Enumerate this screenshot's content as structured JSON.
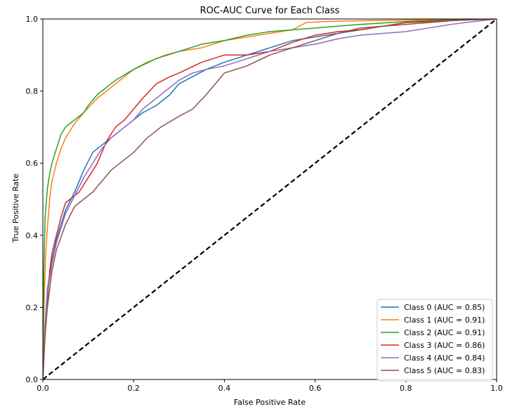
{
  "chart_data": {
    "type": "line",
    "title": "ROC-AUC Curve for Each Class",
    "xlabel": "False Positive Rate",
    "ylabel": "True Positive Rate",
    "xlim": [
      0,
      1
    ],
    "ylim": [
      0,
      1
    ],
    "xticks": [
      "0.0",
      "0.2",
      "0.4",
      "0.6",
      "0.8",
      "1.0"
    ],
    "yticks": [
      "0.0",
      "0.2",
      "0.4",
      "0.6",
      "0.8",
      "1.0"
    ],
    "grid": false,
    "legend_position": "lower-right",
    "diagonal": {
      "style": "dashed",
      "color": "#000000",
      "x": [
        0,
        1
      ],
      "y": [
        0,
        1
      ]
    },
    "series": [
      {
        "name": "Class 0 (AUC = 0.85)",
        "color": "#1f77b4",
        "x": [
          0,
          0.005,
          0.01,
          0.02,
          0.03,
          0.05,
          0.07,
          0.09,
          0.11,
          0.13,
          0.15,
          0.18,
          0.2,
          0.22,
          0.25,
          0.28,
          0.3,
          0.33,
          0.36,
          0.4,
          0.45,
          0.5,
          0.55,
          0.6,
          0.65,
          0.7,
          0.75,
          0.8,
          0.85,
          0.9,
          0.95,
          1.0
        ],
        "y": [
          0,
          0.15,
          0.25,
          0.33,
          0.39,
          0.47,
          0.52,
          0.58,
          0.63,
          0.65,
          0.67,
          0.7,
          0.72,
          0.74,
          0.76,
          0.79,
          0.82,
          0.84,
          0.86,
          0.88,
          0.9,
          0.92,
          0.94,
          0.95,
          0.96,
          0.97,
          0.98,
          0.99,
          0.993,
          0.996,
          0.998,
          1.0
        ]
      },
      {
        "name": "Class 1 (AUC = 0.91)",
        "color": "#ff7f0e",
        "x": [
          0,
          0.003,
          0.006,
          0.01,
          0.015,
          0.02,
          0.03,
          0.04,
          0.05,
          0.07,
          0.09,
          0.12,
          0.15,
          0.18,
          0.2,
          0.23,
          0.27,
          0.3,
          0.35,
          0.4,
          0.45,
          0.5,
          0.55,
          0.58,
          0.62,
          0.7,
          0.8,
          0.9,
          1.0
        ],
        "y": [
          0,
          0.22,
          0.34,
          0.42,
          0.5,
          0.55,
          0.6,
          0.64,
          0.67,
          0.71,
          0.74,
          0.78,
          0.81,
          0.84,
          0.86,
          0.88,
          0.9,
          0.91,
          0.92,
          0.94,
          0.95,
          0.96,
          0.97,
          0.99,
          0.993,
          0.995,
          0.997,
          0.999,
          1.0
        ]
      },
      {
        "name": "Class 2 (AUC = 0.91)",
        "color": "#2ca02c",
        "x": [
          0,
          0.002,
          0.005,
          0.01,
          0.015,
          0.02,
          0.03,
          0.04,
          0.05,
          0.07,
          0.09,
          0.1,
          0.12,
          0.14,
          0.16,
          0.2,
          0.25,
          0.3,
          0.35,
          0.4,
          0.45,
          0.5,
          0.55,
          0.6,
          0.7,
          0.8,
          0.9,
          1.0
        ],
        "y": [
          0,
          0.3,
          0.45,
          0.53,
          0.57,
          0.6,
          0.64,
          0.68,
          0.7,
          0.72,
          0.74,
          0.76,
          0.79,
          0.81,
          0.83,
          0.86,
          0.89,
          0.91,
          0.93,
          0.94,
          0.955,
          0.965,
          0.97,
          0.975,
          0.985,
          0.993,
          0.998,
          1.0
        ]
      },
      {
        "name": "Class 3 (AUC = 0.86)",
        "color": "#d62728",
        "x": [
          0,
          0.005,
          0.01,
          0.015,
          0.02,
          0.03,
          0.04,
          0.05,
          0.06,
          0.07,
          0.08,
          0.1,
          0.12,
          0.14,
          0.16,
          0.18,
          0.2,
          0.22,
          0.25,
          0.28,
          0.3,
          0.35,
          0.4,
          0.45,
          0.5,
          0.55,
          0.6,
          0.65,
          0.7,
          0.75,
          0.8,
          0.85,
          0.9,
          1.0
        ],
        "y": [
          0,
          0.13,
          0.22,
          0.3,
          0.35,
          0.4,
          0.45,
          0.49,
          0.5,
          0.51,
          0.52,
          0.56,
          0.6,
          0.66,
          0.7,
          0.72,
          0.75,
          0.78,
          0.82,
          0.84,
          0.85,
          0.88,
          0.9,
          0.9,
          0.91,
          0.935,
          0.955,
          0.965,
          0.97,
          0.98,
          0.99,
          0.993,
          0.996,
          1.0
        ]
      },
      {
        "name": "Class 4 (AUC = 0.84)",
        "color": "#9467bd",
        "x": [
          0,
          0.005,
          0.01,
          0.02,
          0.03,
          0.05,
          0.07,
          0.09,
          0.11,
          0.13,
          0.15,
          0.18,
          0.2,
          0.22,
          0.25,
          0.28,
          0.3,
          0.33,
          0.36,
          0.4,
          0.45,
          0.5,
          0.55,
          0.6,
          0.65,
          0.7,
          0.75,
          0.8,
          0.85,
          0.9,
          0.95,
          1.0
        ],
        "y": [
          0,
          0.14,
          0.24,
          0.32,
          0.38,
          0.46,
          0.51,
          0.56,
          0.6,
          0.64,
          0.67,
          0.7,
          0.72,
          0.75,
          0.78,
          0.81,
          0.83,
          0.85,
          0.86,
          0.87,
          0.89,
          0.91,
          0.92,
          0.93,
          0.945,
          0.955,
          0.96,
          0.965,
          0.975,
          0.985,
          0.993,
          1.0
        ]
      },
      {
        "name": "Class 5 (AUC = 0.83)",
        "color": "#8c564b",
        "x": [
          0,
          0.005,
          0.01,
          0.02,
          0.03,
          0.05,
          0.07,
          0.09,
          0.11,
          0.13,
          0.15,
          0.18,
          0.2,
          0.23,
          0.26,
          0.3,
          0.33,
          0.36,
          0.38,
          0.4,
          0.45,
          0.5,
          0.55,
          0.6,
          0.65,
          0.7,
          0.75,
          0.8,
          0.85,
          0.9,
          0.95,
          1.0
        ],
        "y": [
          0,
          0.12,
          0.2,
          0.3,
          0.36,
          0.43,
          0.48,
          0.5,
          0.52,
          0.55,
          0.58,
          0.61,
          0.63,
          0.67,
          0.7,
          0.73,
          0.75,
          0.79,
          0.82,
          0.85,
          0.87,
          0.9,
          0.92,
          0.94,
          0.96,
          0.975,
          0.98,
          0.985,
          0.99,
          0.995,
          0.998,
          1.0
        ]
      }
    ]
  }
}
